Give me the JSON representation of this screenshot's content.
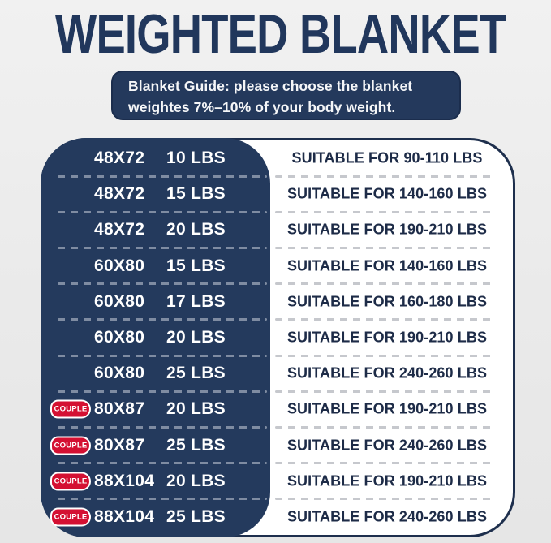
{
  "title": "WEIGHTED BLANKET",
  "banner": {
    "line1": "Blanket Guide: please choose the blanket",
    "line2": "weightes 7%–10% of your body weight."
  },
  "labels": {
    "couple": "COUPLE"
  },
  "colors": {
    "navy": "#243a5d",
    "title_navy": "#21375c",
    "badge_red": "#d41032",
    "background_gray": "#eaeaea",
    "suitable_text": "#1d2b47",
    "dash_on_dark": "#7f8ca2",
    "dash_on_light": "#c6c8cd"
  },
  "table": {
    "rows": [
      {
        "size": "48X72",
        "weight": "10 LBS",
        "suitable": "SUITABLE FOR 90-110 LBS",
        "couple": false
      },
      {
        "size": "48X72",
        "weight": "15 LBS",
        "suitable": "SUITABLE FOR 140-160 LBS",
        "couple": false
      },
      {
        "size": "48X72",
        "weight": "20 LBS",
        "suitable": "SUITABLE FOR 190-210 LBS",
        "couple": false
      },
      {
        "size": "60X80",
        "weight": "15 LBS",
        "suitable": "SUITABLE FOR 140-160 LBS",
        "couple": false
      },
      {
        "size": "60X80",
        "weight": "17 LBS",
        "suitable": "SUITABLE FOR 160-180 LBS",
        "couple": false
      },
      {
        "size": "60X80",
        "weight": "20 LBS",
        "suitable": "SUITABLE FOR 190-210 LBS",
        "couple": false
      },
      {
        "size": "60X80",
        "weight": "25 LBS",
        "suitable": "SUITABLE FOR 240-260 LBS",
        "couple": false
      },
      {
        "size": "80X87",
        "weight": "20 LBS",
        "suitable": "SUITABLE FOR 190-210 LBS",
        "couple": true
      },
      {
        "size": "80X87",
        "weight": "25 LBS",
        "suitable": "SUITABLE FOR 240-260 LBS",
        "couple": true
      },
      {
        "size": "88X104",
        "weight": "20 LBS",
        "suitable": "SUITABLE FOR 190-210 LBS",
        "couple": true
      },
      {
        "size": "88X104",
        "weight": "25 LBS",
        "suitable": "SUITABLE FOR 240-260 LBS",
        "couple": true
      }
    ]
  }
}
